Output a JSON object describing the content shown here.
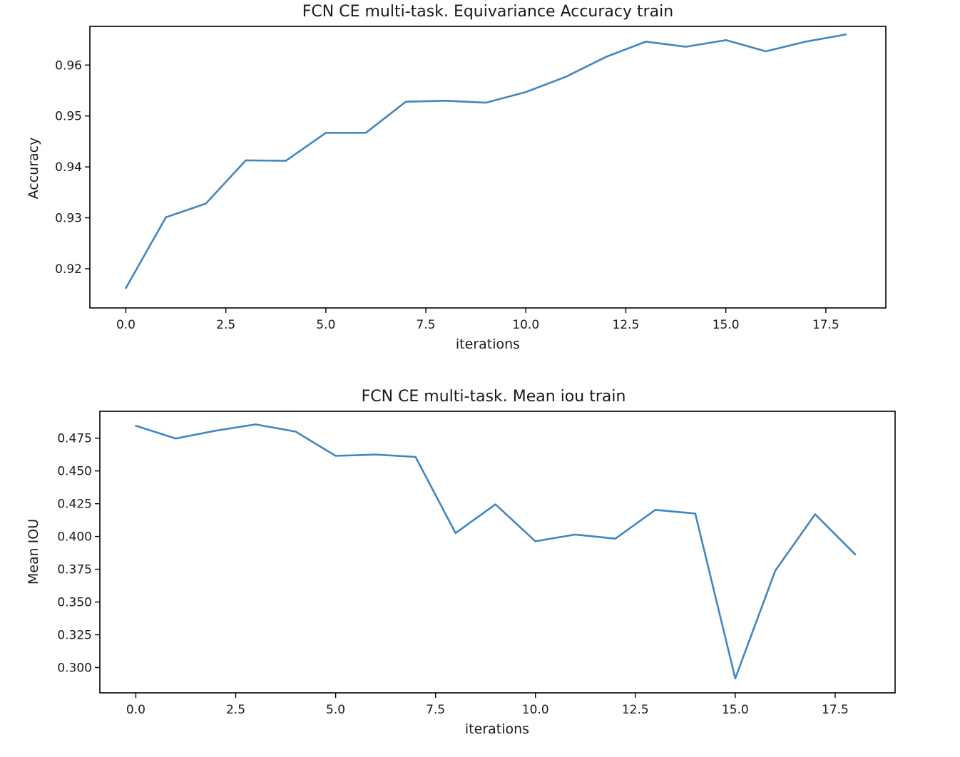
{
  "chart_data": [
    {
      "type": "line",
      "title": "FCN CE multi-task. Equivariance Accuracy train",
      "xlabel": "iterations",
      "ylabel": "Accuracy",
      "x": [
        0,
        1,
        2,
        3,
        4,
        5,
        6,
        7,
        8,
        9,
        10,
        11,
        12,
        13,
        14,
        15,
        16,
        17,
        18
      ],
      "series": [
        {
          "color": "#3f87c2",
          "values": [
            0.9162,
            0.9301,
            0.9328,
            0.9413,
            0.9412,
            0.9467,
            0.9467,
            0.9528,
            0.953,
            0.9526,
            0.9547,
            0.9577,
            0.9616,
            0.9646,
            0.9636,
            0.9649,
            0.9627,
            0.9646,
            0.966
          ]
        }
      ],
      "xlim": [
        -0.9,
        19.0
      ],
      "ylim": [
        0.9123,
        0.9676
      ],
      "xticks": [
        0.0,
        2.5,
        5.0,
        7.5,
        10.0,
        12.5,
        15.0,
        17.5
      ],
      "xtick_labels": [
        "0.0",
        "2.5",
        "5.0",
        "7.5",
        "10.0",
        "12.5",
        "15.0",
        "17.5"
      ],
      "yticks": [
        0.92,
        0.93,
        0.94,
        0.95,
        0.96
      ],
      "ytick_labels": [
        "0.92",
        "0.93",
        "0.94",
        "0.95",
        "0.96"
      ],
      "grid": false
    },
    {
      "type": "line",
      "title": "FCN CE multi-task. Mean iou train",
      "xlabel": "iterations",
      "ylabel": "Mean IOU",
      "x": [
        0,
        1,
        2,
        3,
        4,
        5,
        6,
        7,
        8,
        9,
        10,
        11,
        12,
        13,
        14,
        15,
        16,
        17,
        18
      ],
      "series": [
        {
          "color": "#3f87c2",
          "values": [
            0.4845,
            0.4747,
            0.4807,
            0.4855,
            0.48,
            0.4615,
            0.4625,
            0.4607,
            0.4026,
            0.4245,
            0.3963,
            0.4015,
            0.3983,
            0.4203,
            0.4175,
            0.2917,
            0.3738,
            0.417,
            0.3863
          ]
        }
      ],
      "xlim": [
        -0.9,
        19.0
      ],
      "ylim": [
        0.2807,
        0.4955
      ],
      "xticks": [
        0.0,
        2.5,
        5.0,
        7.5,
        10.0,
        12.5,
        15.0,
        17.5
      ],
      "xtick_labels": [
        "0.0",
        "2.5",
        "5.0",
        "7.5",
        "10.0",
        "12.5",
        "15.0",
        "17.5"
      ],
      "yticks": [
        0.3,
        0.325,
        0.35,
        0.375,
        0.4,
        0.425,
        0.45,
        0.475
      ],
      "ytick_labels": [
        "0.300",
        "0.325",
        "0.350",
        "0.375",
        "0.400",
        "0.425",
        "0.450",
        "0.475"
      ],
      "grid": false
    }
  ]
}
